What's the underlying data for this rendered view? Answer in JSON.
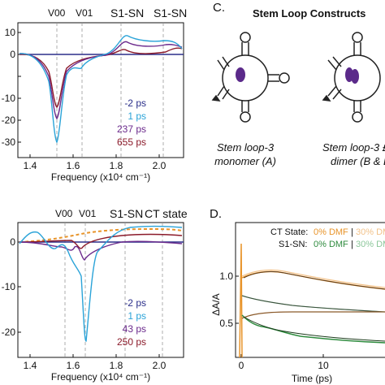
{
  "panels": {
    "a": {
      "letter": "",
      "annotations": [
        "V00",
        "V01",
        "S1-SN",
        "S1-SN"
      ],
      "yticks": [
        "10",
        "0",
        "-10",
        "-20",
        "-30"
      ],
      "xticks": [
        "1.4",
        "1.6",
        "1.8",
        "2.0"
      ],
      "xlabel": "Frequency (x10⁴ cm⁻¹)",
      "legend": [
        {
          "label": "-2 ps",
          "color": "#2b2f8a"
        },
        {
          "label": "1 ps",
          "color": "#2aa3d8"
        },
        {
          "label": "237 ps",
          "color": "#6b2a8c"
        },
        {
          "label": "655 ps",
          "color": "#8b1a2a"
        }
      ]
    },
    "c": {
      "letter": "C.",
      "title": "Stem Loop Constructs",
      "caption1_line1": "Stem loop-3",
      "caption1_line2": "monomer (A)",
      "caption2_line1": "Stem loop-3 £",
      "caption2_line2": "dimer (B & D"
    },
    "b": {
      "letter": "",
      "annotations": [
        "V00",
        "V01",
        "S1-SN",
        "CT state"
      ],
      "yticks": [
        "0",
        "-10",
        "-20"
      ],
      "xticks": [
        "1.4",
        "1.6",
        "1.8",
        "2.0"
      ],
      "xlabel": "Frequency (x10⁴ cm⁻¹)",
      "legend": [
        {
          "label": "-2 ps",
          "color": "#2b2f8a"
        },
        {
          "label": "1 ps",
          "color": "#2aa3d8"
        },
        {
          "label": "43 ps",
          "color": "#6b2a8c"
        },
        {
          "label": "250 ps",
          "color": "#8b1a2a"
        }
      ]
    },
    "d": {
      "letter": "D.",
      "ylabel": "ΔA/A",
      "yticks": [
        "1.0",
        "0.5"
      ],
      "xticks": [
        "0",
        "10"
      ],
      "xlabel": "Time (ps)",
      "legend_row1_prefix": "CT State:",
      "legend_row1_a": "0% DMF",
      "legend_row1_b": "30% DM",
      "legend_row2_prefix": "S1-SN:",
      "legend_row2_a": "0% DMF",
      "legend_row2_b": "30% DM",
      "colors": {
        "ct0": "#e8942a",
        "ct30": "#f2c28a",
        "s0": "#2e8b3e",
        "s30": "#8cc79a"
      }
    }
  }
}
